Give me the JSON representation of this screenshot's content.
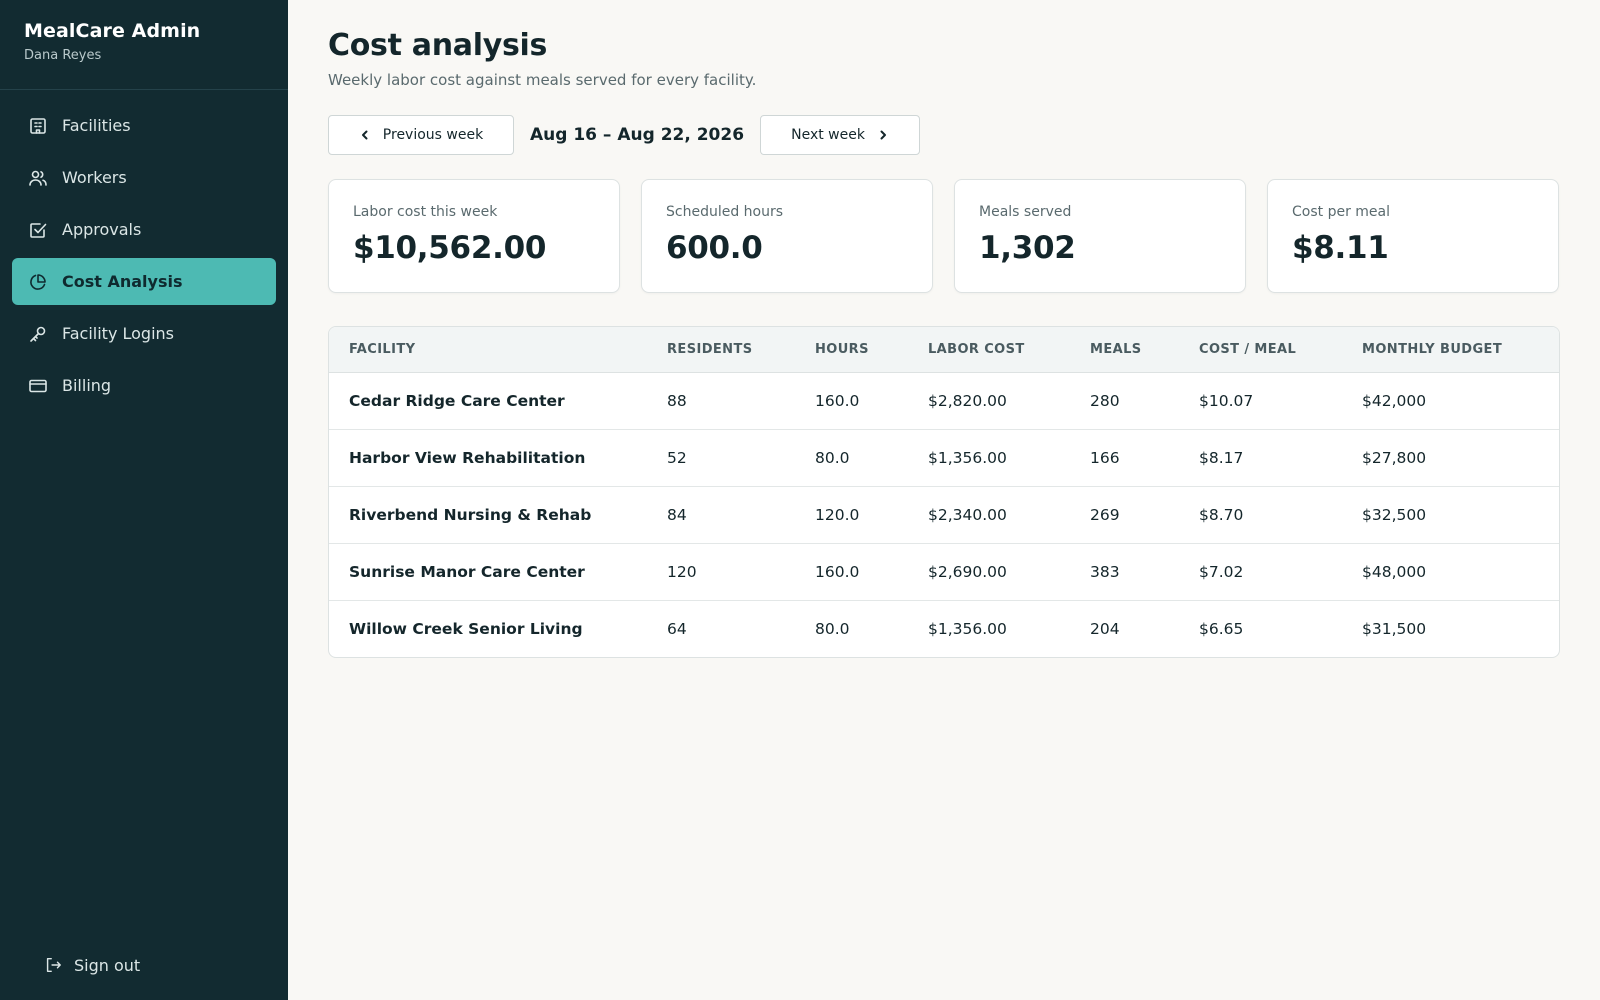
{
  "app": {
    "title": "MealCare Admin",
    "user": "Dana Reyes"
  },
  "sidebar": {
    "items": [
      {
        "label": "Facilities",
        "icon": "building-icon",
        "active": false
      },
      {
        "label": "Workers",
        "icon": "users-icon",
        "active": false
      },
      {
        "label": "Approvals",
        "icon": "checkbox-icon",
        "active": false
      },
      {
        "label": "Cost Analysis",
        "icon": "pie-chart-icon",
        "active": true
      },
      {
        "label": "Facility Logins",
        "icon": "key-icon",
        "active": false
      },
      {
        "label": "Billing",
        "icon": "credit-card-icon",
        "active": false
      }
    ],
    "signout_label": "Sign out"
  },
  "page": {
    "title": "Cost analysis",
    "subtitle": "Weekly labor cost against meals served for every facility."
  },
  "week_nav": {
    "prev_label": "Previous week",
    "range": "Aug 16 – Aug 22, 2026",
    "next_label": "Next week"
  },
  "stats": [
    {
      "label": "Labor cost this week",
      "value": "$10,562.00"
    },
    {
      "label": "Scheduled hours",
      "value": "600.0"
    },
    {
      "label": "Meals served",
      "value": "1,302"
    },
    {
      "label": "Cost per meal",
      "value": "$8.11"
    }
  ],
  "table": {
    "headers": [
      "FACILITY",
      "RESIDENTS",
      "HOURS",
      "LABOR COST",
      "MEALS",
      "COST / MEAL",
      "MONTHLY BUDGET"
    ],
    "rows": [
      [
        "Cedar Ridge Care Center",
        "88",
        "160.0",
        "$2,820.00",
        "280",
        "$10.07",
        "$42,000"
      ],
      [
        "Harbor View Rehabilitation",
        "52",
        "80.0",
        "$1,356.00",
        "166",
        "$8.17",
        "$27,800"
      ],
      [
        "Riverbend Nursing & Rehab",
        "84",
        "120.0",
        "$2,340.00",
        "269",
        "$8.70",
        "$32,500"
      ],
      [
        "Sunrise Manor Care Center",
        "120",
        "160.0",
        "$2,690.00",
        "383",
        "$7.02",
        "$48,000"
      ],
      [
        "Willow Creek Senior Living",
        "64",
        "80.0",
        "$1,356.00",
        "204",
        "$6.65",
        "$31,500"
      ]
    ]
  },
  "colors": {
    "sidebar_bg": "#122b31",
    "accent": "#4dbab3",
    "page_bg": "#f9f8f5"
  }
}
